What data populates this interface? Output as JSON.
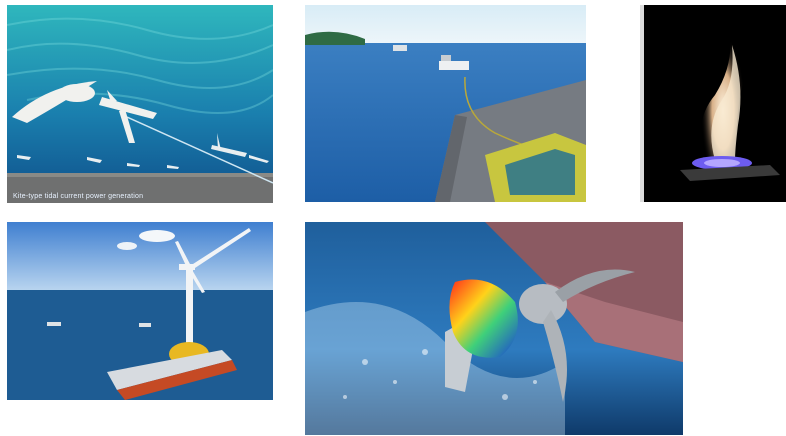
{
  "images": {
    "underwater_kite": {
      "caption": "Kite-type tidal current power generation"
    },
    "seabed_cable": {},
    "flame": {},
    "offshore_wind_turbine": {},
    "ship_propeller": {}
  }
}
